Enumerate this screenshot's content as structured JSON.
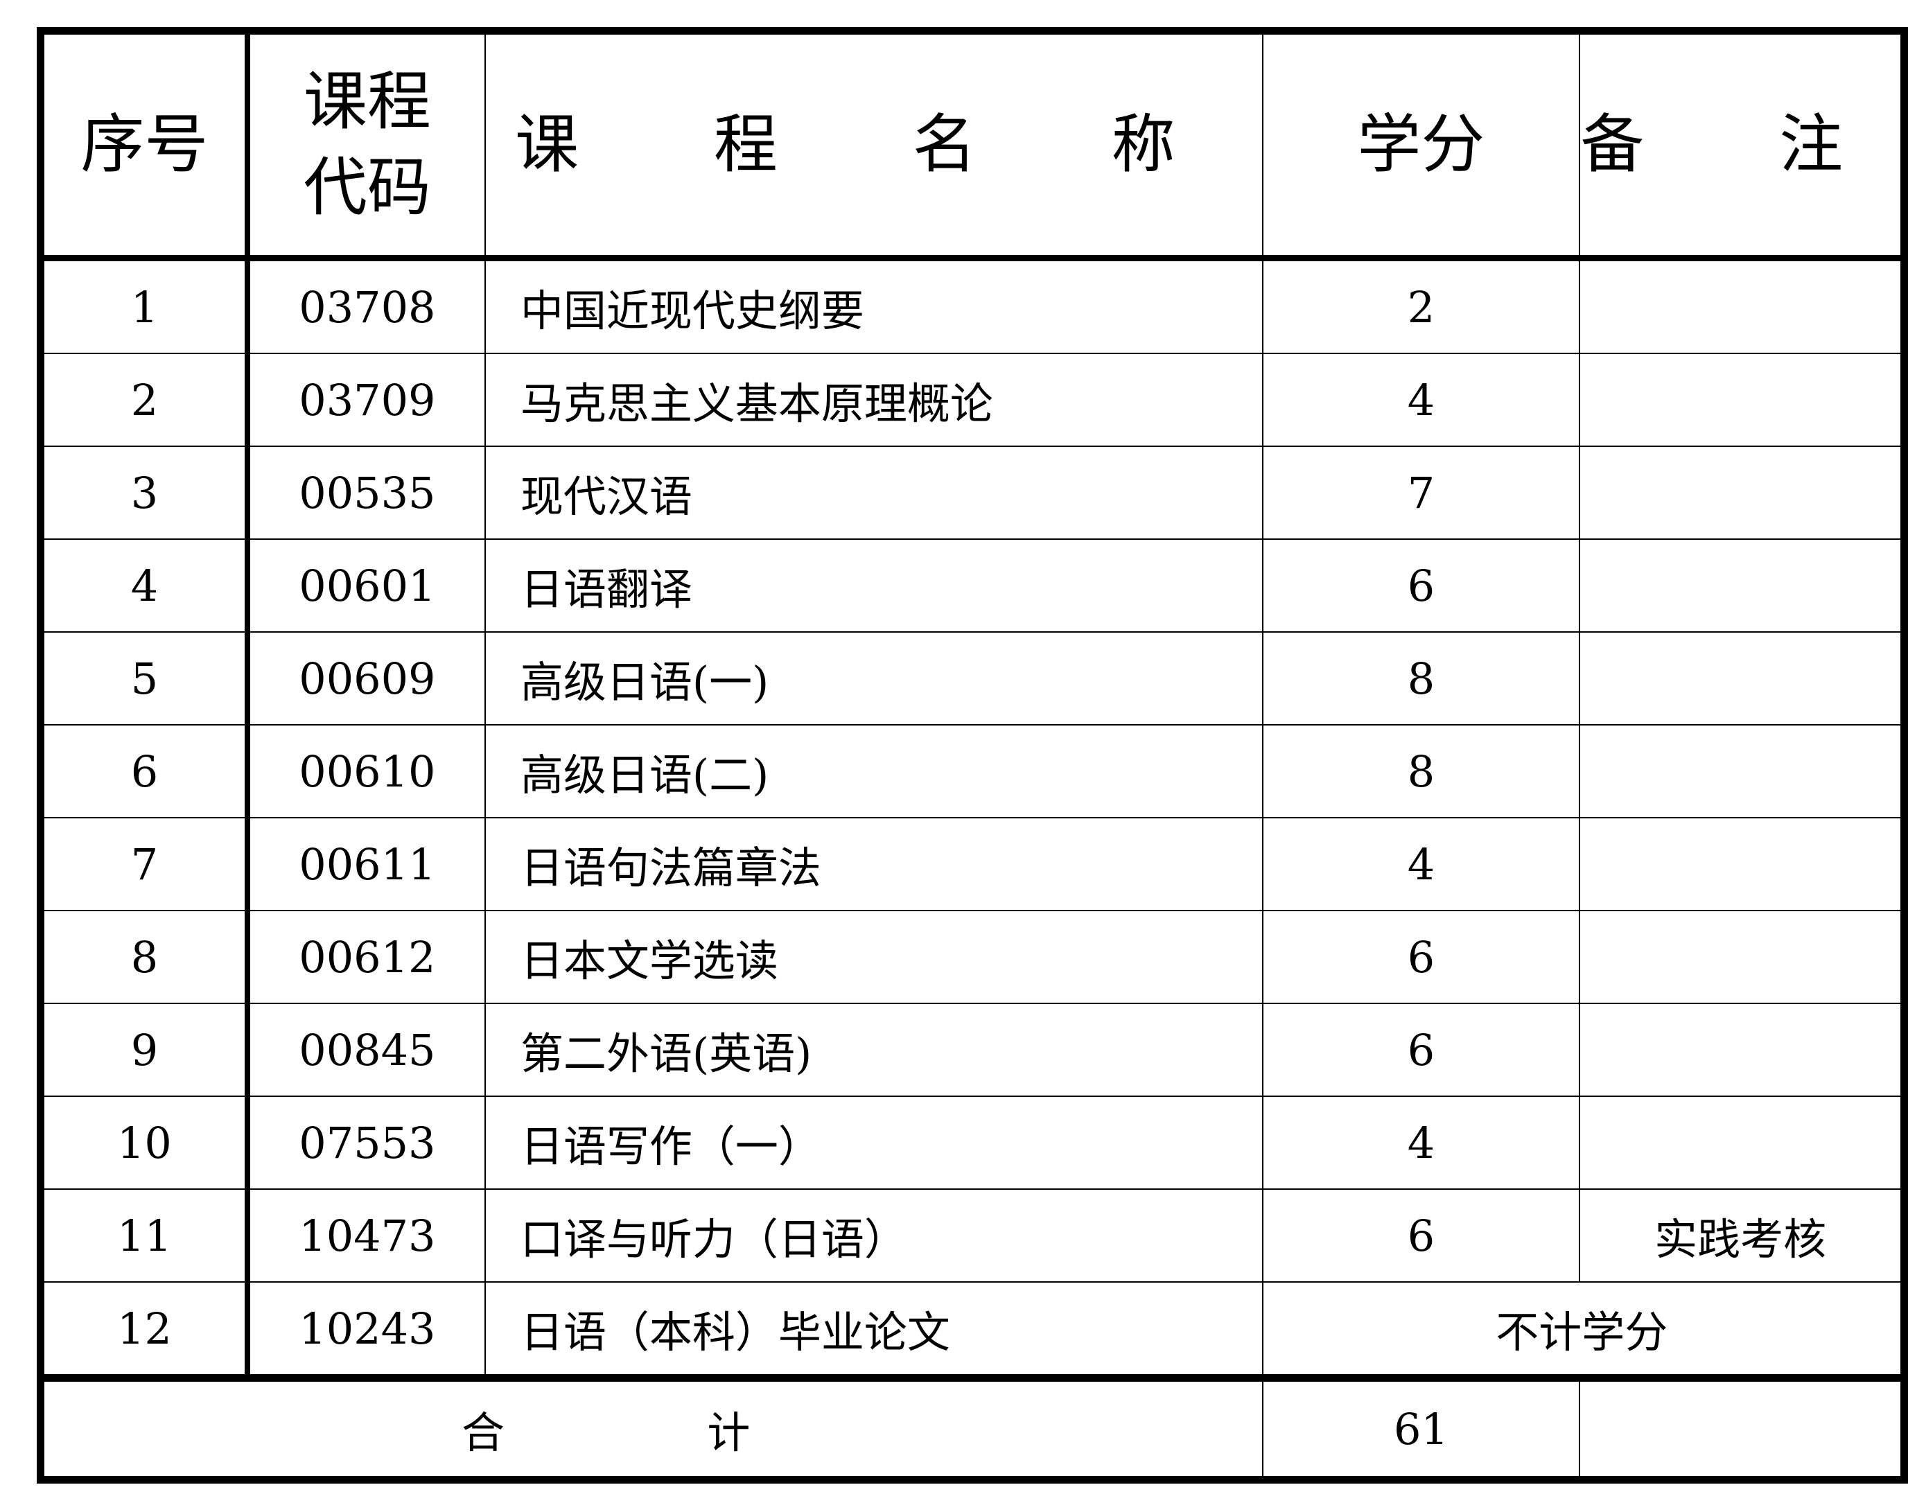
{
  "headers": {
    "index": "序号",
    "code_line1": "课程",
    "code_line2": "代码",
    "name": "课 程 名 称",
    "credits": "学分",
    "remarks": "备 注"
  },
  "rows": [
    {
      "index": "1",
      "code": "03708",
      "name": "中国近现代史纲要",
      "credits": "2",
      "remarks": ""
    },
    {
      "index": "2",
      "code": "03709",
      "name": "马克思主义基本原理概论",
      "credits": "4",
      "remarks": ""
    },
    {
      "index": "3",
      "code": "00535",
      "name": "现代汉语",
      "credits": "7",
      "remarks": ""
    },
    {
      "index": "4",
      "code": "00601",
      "name": "日语翻译",
      "credits": "6",
      "remarks": ""
    },
    {
      "index": "5",
      "code": "00609",
      "name": "高级日语(一)",
      "credits": "8",
      "remarks": ""
    },
    {
      "index": "6",
      "code": "00610",
      "name": "高级日语(二)",
      "credits": "8",
      "remarks": ""
    },
    {
      "index": "7",
      "code": "00611",
      "name": "日语句法篇章法",
      "credits": "4",
      "remarks": ""
    },
    {
      "index": "8",
      "code": "00612",
      "name": "日本文学选读",
      "credits": "6",
      "remarks": ""
    },
    {
      "index": "9",
      "code": "00845",
      "name": "第二外语(英语)",
      "credits": "6",
      "remarks": ""
    },
    {
      "index": "10",
      "code": "07553",
      "name": "日语写作（一）",
      "credits": "4",
      "remarks": ""
    },
    {
      "index": "11",
      "code": "10473",
      "name": "口译与听力（日语）",
      "credits": "6",
      "remarks": "实践考核"
    },
    {
      "index": "12",
      "code": "10243",
      "name": "日语（本科）毕业论文",
      "credits_merged": "不计学分"
    }
  ],
  "total": {
    "label": "合 计",
    "credits": "61",
    "remarks": ""
  }
}
